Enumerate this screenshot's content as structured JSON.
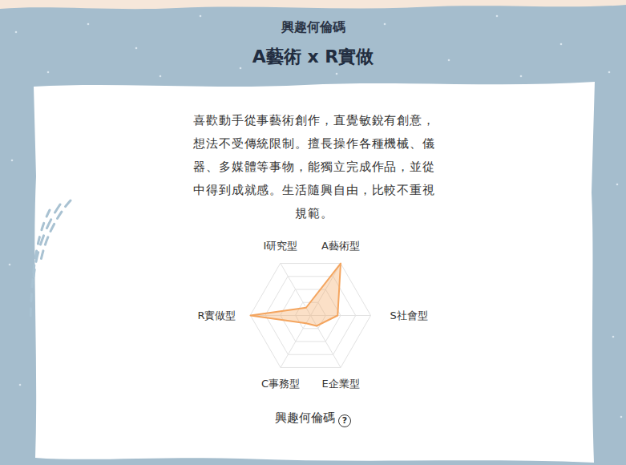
{
  "header": {
    "subtitle": "興趣何倫碼",
    "title": "A藝術 x R實做"
  },
  "description": "喜歡動手從事藝術創作，直覺敏銳有創意，想法不受傳統限制。擅長操作各種機械、儀器、多媒體等事物，能獨立完成作品，並從中得到成就感。生活隨興自由，比較不重視規範。",
  "chart_data": {
    "type": "radar",
    "categories": [
      "I研究型",
      "A藝術型",
      "S社會型",
      "E企業型",
      "C事務型",
      "R實做型"
    ],
    "values": [
      15,
      100,
      45,
      20,
      15,
      100
    ],
    "color": "#f4a55f",
    "ylim": [
      0,
      100
    ],
    "yticks": [
      25,
      50,
      75,
      100
    ],
    "grid": true,
    "tick_labels": false
  },
  "footer": {
    "label": "興趣何倫碼",
    "icon": "?"
  }
}
